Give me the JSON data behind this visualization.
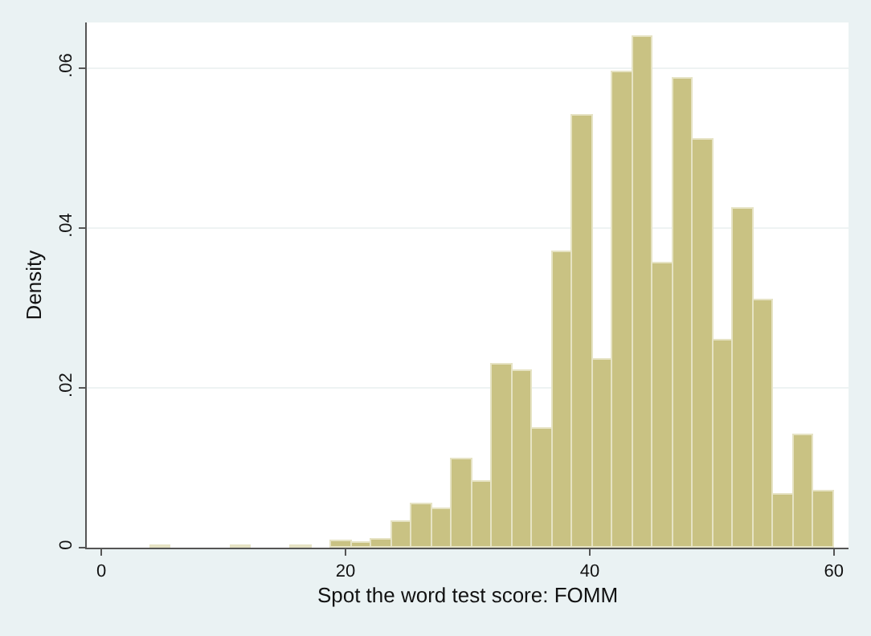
{
  "chart_data": {
    "type": "histogram",
    "xlabel": "Spot the word test score: FOMM",
    "ylabel": "Density",
    "bins": [
      4,
      5.65,
      7.29,
      8.94,
      10.59,
      12.24,
      13.88,
      15.53,
      17.18,
      18.82,
      20.47,
      22.12,
      23.76,
      25.41,
      27.06,
      28.71,
      30.35,
      32.0,
      33.65,
      35.29,
      36.94,
      38.59,
      40.24,
      41.88,
      43.53,
      45.18,
      46.82,
      48.47,
      50.12,
      51.76,
      53.41,
      55.06,
      56.71,
      58.35,
      60
    ],
    "values": [
      0.0002,
      0,
      0,
      0,
      0.0002,
      0,
      0,
      0.0002,
      0,
      0.0008,
      0.0006,
      0.001,
      0.0032,
      0.0054,
      0.0048,
      0.011,
      0.0082,
      0.0229,
      0.0222,
      0.0148,
      0.0369,
      0.054,
      0.0236,
      0.0594,
      0.0638,
      0.0355,
      0.0587,
      0.0511,
      0.026,
      0.0423,
      0.031,
      0.0066,
      0.0141,
      0.007
    ],
    "color": "#c9c283",
    "xlim": [
      -1.2,
      61.2
    ],
    "xticks": [
      0,
      20,
      40,
      60
    ],
    "ylim": [
      0,
      0.0657
    ],
    "yticks": [
      {
        "value": 0,
        "label": "0"
      },
      {
        "value": 0.02,
        "label": ".02"
      },
      {
        "value": 0.04,
        "label": ".04"
      },
      {
        "value": 0.06,
        "label": ".06"
      }
    ],
    "grid": "y"
  }
}
